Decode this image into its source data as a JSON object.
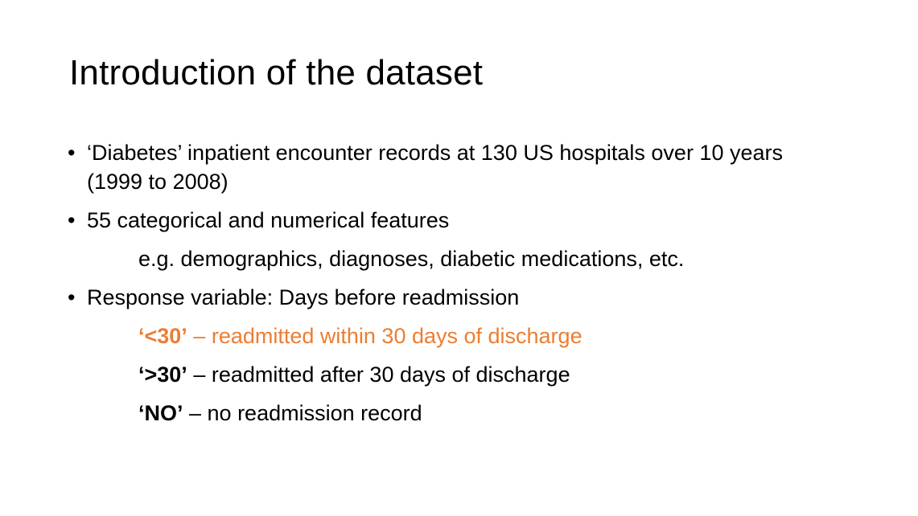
{
  "slide": {
    "title": "Introduction of the dataset",
    "bullet_glyph": "•",
    "bullets": [
      {
        "text": "‘Diabetes’ inpatient encounter records at 130 US hospitals over 10 years (1999 to 2008)"
      },
      {
        "text": "55 categorical and numerical features"
      },
      {
        "text": "Response variable: Days before readmission"
      }
    ],
    "features_example": "e.g. demographics, diagnoses, diabetic medications, etc.",
    "response_values": [
      {
        "code": "‘<30’",
        "description": " – readmitted within 30 days of discharge",
        "highlighted": true
      },
      {
        "code": "‘>30’",
        "description": " – readmitted after 30 days of discharge",
        "highlighted": false
      },
      {
        "code": "‘NO’",
        "description": " – no readmission record",
        "highlighted": false
      }
    ],
    "colors": {
      "text": "#000000",
      "highlight": "#ED7D31",
      "background": "#FFFFFF"
    }
  }
}
